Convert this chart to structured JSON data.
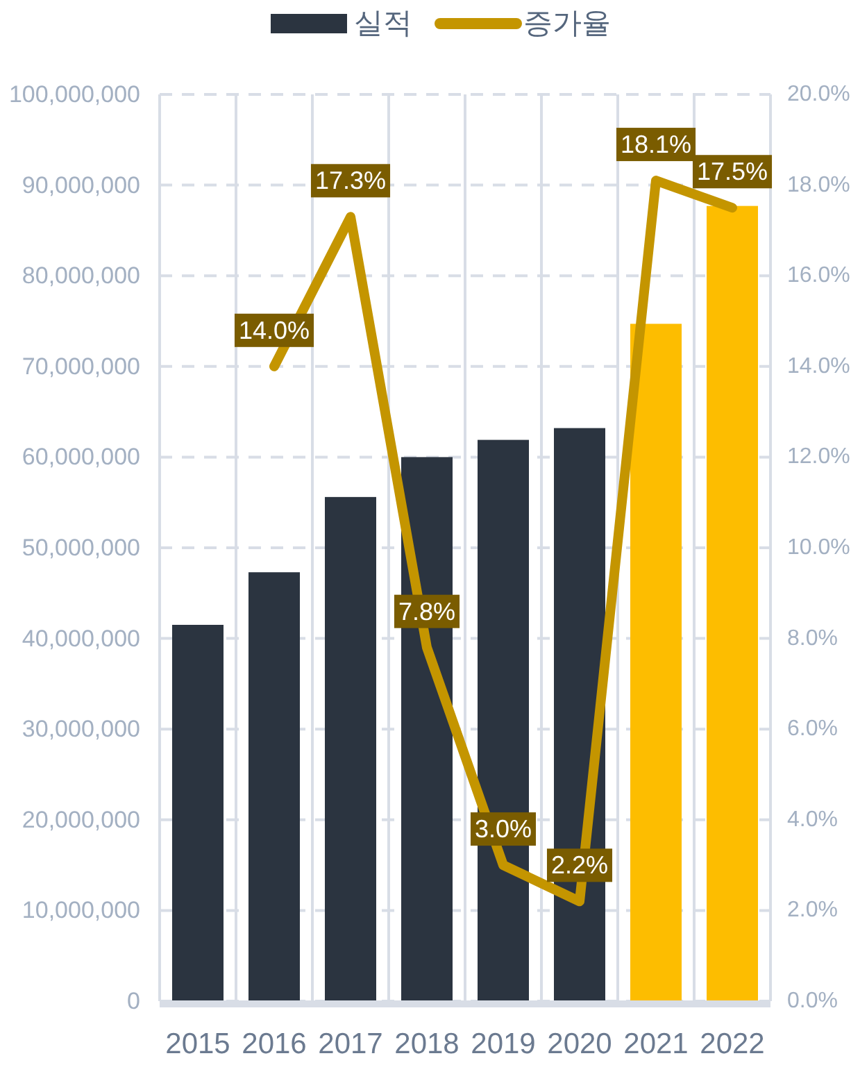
{
  "chart_data": {
    "type": "bar",
    "categories": [
      "2015",
      "2016",
      "2017",
      "2018",
      "2019",
      "2020",
      "2021",
      "2022"
    ],
    "series": [
      {
        "name": "실적",
        "color": "#2b3440",
        "colors": [
          "#2b3440",
          "#2b3440",
          "#2b3440",
          "#2b3440",
          "#2b3440",
          "#2b3440",
          "#fdbd00",
          "#fdbd00"
        ],
        "values": [
          41500000,
          47300000,
          55600000,
          60000000,
          61900000,
          63200000,
          74700000,
          87700000
        ]
      },
      {
        "name": "증가율",
        "type": "line",
        "axis": "y2",
        "color": "#c49500",
        "values": [
          null,
          14.0,
          17.3,
          7.8,
          3.0,
          2.2,
          18.1,
          17.5
        ],
        "value_labels": [
          null,
          "14.0%",
          "17.3%",
          "7.8%",
          "3.0%",
          "2.2%",
          "18.1%",
          "17.5%"
        ]
      }
    ],
    "ylim": [
      0,
      100000000
    ],
    "yticks": [
      0,
      {
        "value": 10000000,
        "label": "10,000,000"
      },
      {
        "value": 20000000,
        "label": "20,000,000"
      },
      {
        "value": 30000000,
        "label": "30,000,000"
      },
      {
        "value": 40000000,
        "label": "40,000,000"
      },
      {
        "value": 50000000,
        "label": "50,000,000"
      },
      {
        "value": 60000000,
        "label": "60,000,000"
      },
      {
        "value": 70000000,
        "label": "70,000,000"
      },
      {
        "value": 80000000,
        "label": "80,000,000"
      },
      {
        "value": 90000000,
        "label": "90,000,000"
      },
      {
        "value": 100000000,
        "label": "100,000,000"
      }
    ],
    "y2lim": [
      0,
      20
    ],
    "y2ticks": [
      {
        "value": 0,
        "label": "0.0%"
      },
      {
        "value": 2,
        "label": "2.0%"
      },
      {
        "value": 4,
        "label": "4.0%"
      },
      {
        "value": 6,
        "label": "6.0%"
      },
      {
        "value": 8,
        "label": "8.0%"
      },
      {
        "value": 10,
        "label": "10.0%"
      },
      {
        "value": 12,
        "label": "12.0%"
      },
      {
        "value": 14,
        "label": "14.0%"
      },
      {
        "value": 16,
        "label": "16.0%"
      },
      {
        "value": 18,
        "label": "18.0%"
      },
      {
        "value": 20,
        "label": "20.0%"
      }
    ],
    "grid": true,
    "legend": "top"
  }
}
